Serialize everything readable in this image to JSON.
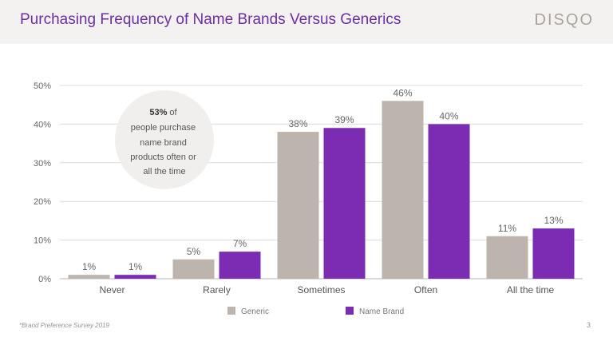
{
  "header": {
    "title": "Purchasing Frequency of Name Brands Versus Generics",
    "logo": "DISQO"
  },
  "callout": {
    "highlight": "53%",
    "line1_rest": " of",
    "line2": "people purchase",
    "line3": "name brand",
    "line4": "products often or",
    "line5": "all the time"
  },
  "footer": {
    "note": "*Brand Preference Survey 2019",
    "page": "3"
  },
  "colors": {
    "generic": "#bdb5ad",
    "name_brand": "#7b2cb3",
    "callout_bg": "#f1efed",
    "grid": "#dcdcdc"
  },
  "chart_data": {
    "type": "bar",
    "categories": [
      "Never",
      "Rarely",
      "Sometimes",
      "Often",
      "All the time"
    ],
    "series": [
      {
        "name": "Generic",
        "values": [
          1,
          5,
          38,
          46,
          11
        ],
        "labels": [
          "1%",
          "5%",
          "38%",
          "46%",
          "11%"
        ]
      },
      {
        "name": "Name Brand",
        "values": [
          1,
          7,
          39,
          40,
          13
        ],
        "labels": [
          "1%",
          "7%",
          "39%",
          "40%",
          "13%"
        ]
      }
    ],
    "y_ticks": [
      "0%",
      "10%",
      "20%",
      "30%",
      "40%",
      "50%"
    ],
    "ylim": [
      0,
      50
    ],
    "grid": true,
    "legend_position": "bottom"
  }
}
